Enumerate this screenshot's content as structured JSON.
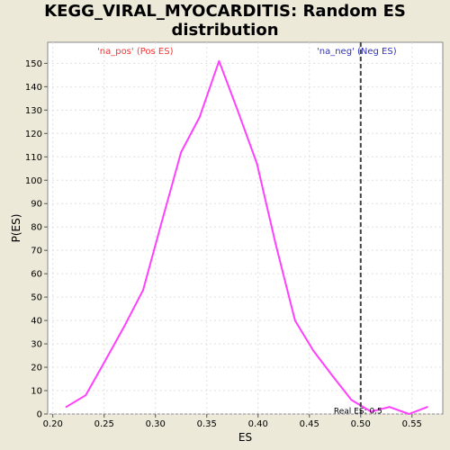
{
  "chart_data": {
    "type": "line",
    "title_line1": "KEGG_VIRAL_MYOCARDITIS: Random ES",
    "title_line2": "distribution",
    "xlabel": "ES",
    "ylabel": "P(ES)",
    "xlim": [
      0.195,
      0.58
    ],
    "ylim": [
      0,
      159
    ],
    "x_ticks": [
      0.2,
      0.25,
      0.3,
      0.35,
      0.4,
      0.45,
      0.5,
      0.55
    ],
    "x_tick_labels": [
      "0.20",
      "0.25",
      "0.30",
      "0.35",
      "0.40",
      "0.45",
      "0.50",
      "0.55"
    ],
    "y_ticks": [
      0,
      10,
      20,
      30,
      40,
      50,
      60,
      70,
      80,
      90,
      100,
      110,
      120,
      130,
      140,
      150
    ],
    "y_tick_labels": [
      "0",
      "10",
      "20",
      "30",
      "40",
      "50",
      "60",
      "70",
      "80",
      "90",
      "100",
      "110",
      "120",
      "130",
      "140",
      "150"
    ],
    "grid": true,
    "series": [
      {
        "color": "#ff40ff",
        "x": [
          0.213,
          0.232,
          0.25,
          0.269,
          0.288,
          0.306,
          0.325,
          0.343,
          0.362,
          0.38,
          0.399,
          0.417,
          0.436,
          0.454,
          0.473,
          0.491,
          0.51,
          0.528,
          0.547,
          0.565
        ],
        "y": [
          3,
          8,
          22,
          37,
          53,
          82,
          112,
          127,
          151,
          130,
          107,
          73,
          40,
          27,
          16,
          6,
          1,
          3,
          0,
          3
        ]
      }
    ],
    "legend": [
      {
        "label": "'na_pos' (Pos ES)",
        "color": "#ff3030"
      },
      {
        "label": "'na_neg' (Neg ES)",
        "color": "#3030c0"
      }
    ],
    "real_es": {
      "value": 0.5,
      "label": "Real ES: 0.5",
      "color": "#404040"
    }
  }
}
